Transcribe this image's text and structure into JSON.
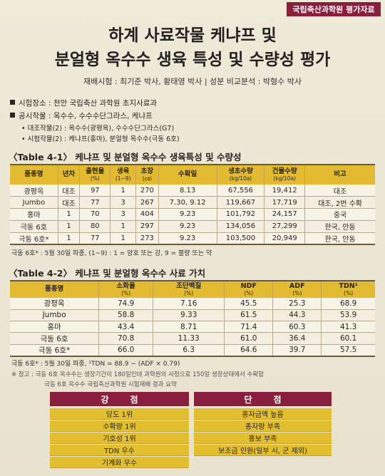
{
  "header": {
    "badge": "국립축산과학원 평가자료",
    "title_line1": "하계 사료작물 케냐프 및",
    "title_line2": "분얼형 옥수수 생육 특성 및 수량성 평가",
    "authors": "재배시험 : 최기준 박사, 황태영 박사 | 성분 비교분석 : 박형수 박사"
  },
  "info": {
    "site": "시험장소 : 천안 국립축산 과학원 초지사료과",
    "crops": "공시작물 : 옥수수, 수수수단그라스, 케냐프",
    "control": "대조작물(2) : 옥수수(광평옥), 수수수단그라스(G7)",
    "test": "시험작물(2) : 케냐프(홍마), 분얼형 옥수수(극동 6호)"
  },
  "table1": {
    "caption": "〈Table 4-1〉 케냐프 및 분얼형 옥수수 생육특성 및 수량성",
    "headers": [
      {
        "label": "품종명",
        "unit": ""
      },
      {
        "label": "년차",
        "unit": ""
      },
      {
        "label": "출현율",
        "unit": "(%)"
      },
      {
        "label": "생육",
        "unit": "(1~9)"
      },
      {
        "label": "초장",
        "unit": "(㎝)"
      },
      {
        "label": "수확일",
        "unit": ""
      },
      {
        "label": "생초수량",
        "unit": "(kg/10a)"
      },
      {
        "label": "건물수량",
        "unit": "(kg/10a)"
      },
      {
        "label": "비고",
        "unit": ""
      }
    ],
    "rows": [
      [
        "광평옥",
        "대조",
        "97",
        "1",
        "270",
        "8.13",
        "67,556",
        "19,412",
        "대조"
      ],
      [
        "Jumbo",
        "대조",
        "77",
        "3",
        "267",
        "7.30, 9.12",
        "119,667",
        "17,719",
        "대조, 2번 수확"
      ],
      [
        "홍마",
        "1",
        "70",
        "3",
        "404",
        "9.23",
        "101,792",
        "24,157",
        "중국"
      ],
      [
        "극동 6호",
        "1",
        "80",
        "1",
        "297",
        "9.23",
        "134,056",
        "27,299",
        "한국, 안동"
      ],
      [
        "극동 6호*",
        "1",
        "77",
        "1",
        "273",
        "9.23",
        "103,500",
        "20,949",
        "한국, 안동"
      ]
    ],
    "note": "극동 6호* : 5월 30일 파종,  (1~9) : 1 = 양호 또는 강, 9 = 불량 또는 약"
  },
  "table2": {
    "caption": "〈Table 4-2〉 케냐프 및 분얼형 옥수수 사료 가치",
    "headers": [
      {
        "label": "품종명",
        "unit": ""
      },
      {
        "label": "소화율",
        "unit": "(%)"
      },
      {
        "label": "조단백질",
        "unit": "(%)"
      },
      {
        "label": "NDF",
        "unit": "(%)"
      },
      {
        "label": "ADF",
        "unit": "(%)"
      },
      {
        "label": "TDN¹",
        "unit": "(%)"
      }
    ],
    "rows": [
      [
        "광평옥",
        "74.9",
        "7.16",
        "45.5",
        "25.3",
        "68.9"
      ],
      [
        "Jumbo",
        "58.8",
        "9.33",
        "61.5",
        "44.3",
        "53.9"
      ],
      [
        "홍마",
        "43.4",
        "8.71",
        "71.4",
        "60.3",
        "41.3"
      ],
      [
        "극동 6호",
        "70.8",
        "11.33",
        "61.0",
        "36.4",
        "60.1"
      ],
      [
        "극동 6호*",
        "66.0",
        "6.3",
        "64.6",
        "39.7",
        "57.5"
      ]
    ],
    "note": "극동 6호* : 5월 30일 파종, ¹TDN = 88.9 − (ADF × 0.79)",
    "ref1": "※ 참고 : 극동 6호 옥수수는 생장기간이 180일인데 과학원의 사정으로 150일 생장상태에서 수확함",
    "ref2": "극동 6호 옥수수 국립축산과학원 시험재배 결과 요약"
  },
  "pros_cons": {
    "pros_title": "강점",
    "cons_title": "단점",
    "pros": [
      "당도 1위",
      "수확량 1위",
      "기호성 1위",
      "TDN 우수",
      "기계화 우수"
    ],
    "cons": [
      "종자금액 높음",
      "종자량 부족",
      "홍보 부족",
      "보조금 인원(일부 시, 군 제외)"
    ]
  }
}
